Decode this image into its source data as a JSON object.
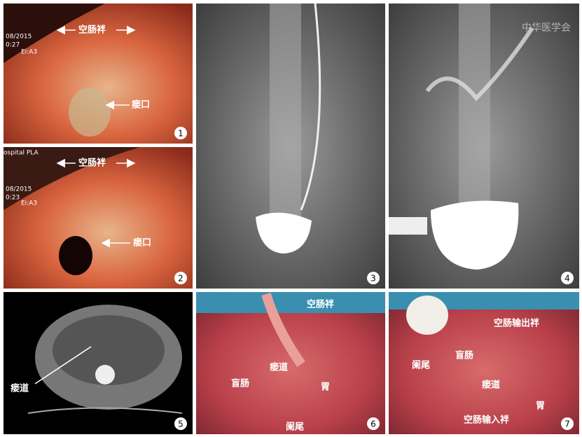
{
  "panels": [
    {
      "number": "1",
      "overlay": [
        "08/2015",
        "0:27",
        "Ei:A3"
      ],
      "labels": [
        "空肠袢",
        "瘘口"
      ]
    },
    {
      "number": "2",
      "overlay": [
        "ospital PLA",
        "08/2015",
        "0:23",
        "Ei:A3"
      ],
      "labels": [
        "空肠袢",
        "瘘口"
      ]
    },
    {
      "number": "3"
    },
    {
      "number": "4",
      "watermark": "中华医学会"
    },
    {
      "number": "5",
      "labels": [
        "瘘道"
      ]
    },
    {
      "number": "6",
      "labels": [
        "空肠袢",
        "瘘道",
        "盲肠",
        "胃",
        "阑尾"
      ]
    },
    {
      "number": "7",
      "labels": [
        "空肠输出袢",
        "阑尾",
        "盲肠",
        "瘘道",
        "胃",
        "空肠输入袢"
      ]
    }
  ]
}
